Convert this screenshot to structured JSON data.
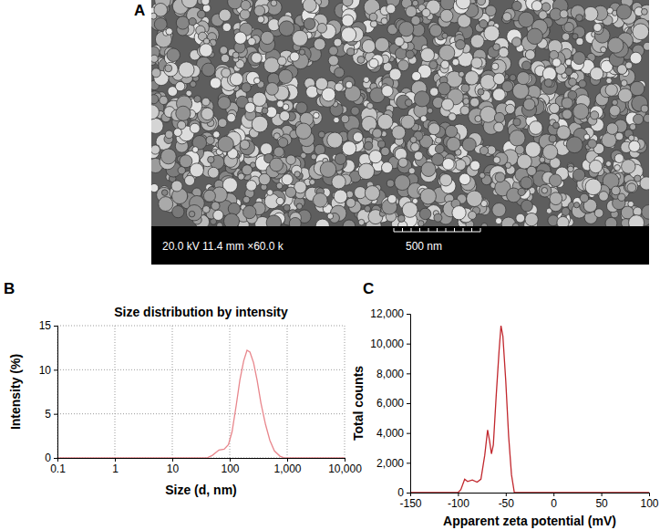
{
  "chart_data": [
    {
      "type": "image",
      "label": "A",
      "caption": "20.0 kV 11.4 mm ×60.0 k",
      "scale_bar": "500 nm"
    },
    {
      "type": "line",
      "label": "B",
      "title": "Size distribution by intensity",
      "x_label": "Size (d, nm)",
      "y_label": "Intensity (%)",
      "log": "x",
      "grid": true,
      "color": "#e8868c",
      "x": [
        0.1,
        40,
        50,
        65,
        80,
        95,
        110,
        130,
        150,
        175,
        200,
        225,
        260,
        300,
        350,
        420,
        500,
        600,
        750,
        900,
        10000
      ],
      "values": [
        0,
        0,
        0.3,
        0.9,
        1.0,
        1.5,
        3,
        6,
        8.8,
        11,
        12.2,
        12,
        10.8,
        8.8,
        6.2,
        3.8,
        2,
        0.8,
        0.2,
        0,
        0
      ],
      "xlim": [
        0.1,
        10000
      ],
      "xticks": [
        0.1,
        1,
        10,
        100,
        {
          "value": 1000,
          "label": "1,000"
        },
        {
          "value": 10000,
          "label": "10,000"
        }
      ],
      "ylim": [
        0,
        15
      ],
      "yticks": [
        0,
        5,
        10,
        15
      ]
    },
    {
      "type": "line",
      "label": "C",
      "x_label": "Apparent zeta potential (mV)",
      "y_label": "Total counts",
      "grid": false,
      "color": "#c1272d",
      "x": [
        -150,
        -100,
        -97,
        -93,
        -90,
        -85,
        -80,
        -76,
        -72,
        -69,
        -67,
        -65,
        -63,
        -60,
        -57,
        -55,
        -53,
        -50,
        -47,
        -44,
        -41,
        100
      ],
      "values": [
        0,
        0,
        200,
        900,
        750,
        850,
        700,
        900,
        2500,
        4200,
        3500,
        2600,
        3200,
        6500,
        9500,
        11200,
        10500,
        7500,
        3800,
        1200,
        0,
        0
      ],
      "xlim": [
        -150,
        100
      ],
      "xticks": [
        -150,
        -100,
        -50,
        0,
        50,
        100
      ],
      "ylim": [
        0,
        12000
      ],
      "yticks": [
        0,
        {
          "value": 2000,
          "label": "2,000"
        },
        {
          "value": 4000,
          "label": "4,000"
        },
        {
          "value": 6000,
          "label": "6,000"
        },
        {
          "value": 8000,
          "label": "8,000"
        },
        {
          "value": 10000,
          "label": "10,000"
        },
        {
          "value": 12000,
          "label": "12,000"
        }
      ]
    }
  ]
}
